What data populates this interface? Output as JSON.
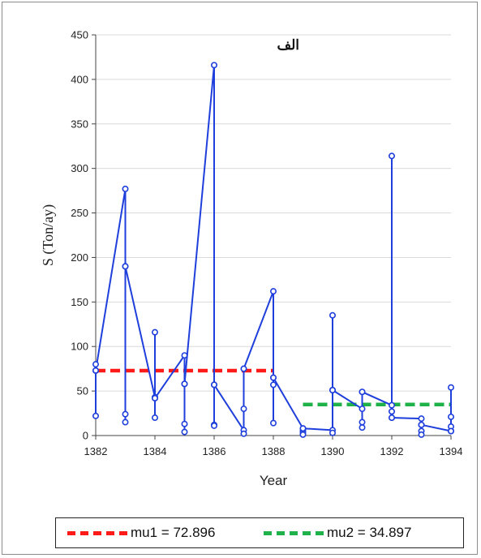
{
  "chart_data": {
    "type": "line",
    "title": "الف",
    "xlabel": "Year",
    "ylabel": "S (Ton/ay)",
    "xlim": [
      1382,
      1394
    ],
    "ylim": [
      0,
      450
    ],
    "x_ticks": [
      "1382",
      "1384",
      "1386",
      "1388",
      "1390",
      "1392",
      "1394"
    ],
    "y_ticks": [
      "0",
      "50",
      "100",
      "150",
      "200",
      "250",
      "300",
      "350",
      "400",
      "450"
    ],
    "grid": "horizontal",
    "legend_position": "bottom",
    "series": [
      {
        "name": "",
        "color": "#1f3fdc",
        "points": [
          [
            1382,
            80
          ],
          [
            1382,
            73
          ],
          [
            1382,
            22
          ],
          [
            1382,
            73
          ],
          [
            1383,
            277
          ],
          [
            1383,
            190
          ],
          [
            1383,
            24
          ],
          [
            1383,
            15
          ],
          [
            1383,
            190
          ],
          [
            1384,
            43
          ],
          [
            1384,
            116
          ],
          [
            1384,
            42
          ],
          [
            1384,
            20
          ],
          [
            1384,
            42
          ],
          [
            1385,
            90
          ],
          [
            1385,
            58
          ],
          [
            1385,
            13
          ],
          [
            1385,
            4
          ],
          [
            1385,
            58
          ],
          [
            1386,
            416
          ],
          [
            1386,
            57
          ],
          [
            1386,
            12
          ],
          [
            1386,
            11
          ],
          [
            1386,
            57
          ],
          [
            1387,
            6
          ],
          [
            1387,
            75
          ],
          [
            1387,
            30
          ],
          [
            1387,
            2
          ],
          [
            1387,
            75
          ],
          [
            1388,
            162
          ],
          [
            1388,
            65
          ],
          [
            1388,
            57
          ],
          [
            1388,
            14
          ],
          [
            1388,
            65
          ],
          [
            1389,
            8
          ],
          [
            1389,
            5
          ],
          [
            1389,
            3
          ],
          [
            1389,
            1
          ],
          [
            1389,
            8
          ],
          [
            1390,
            6
          ],
          [
            1390,
            135
          ],
          [
            1390,
            51
          ],
          [
            1390,
            3
          ],
          [
            1390,
            51
          ],
          [
            1391,
            30
          ],
          [
            1391,
            49
          ],
          [
            1391,
            15
          ],
          [
            1391,
            9
          ],
          [
            1391,
            49
          ],
          [
            1392,
            34
          ],
          [
            1392,
            314
          ],
          [
            1392,
            27
          ],
          [
            1392,
            20
          ],
          [
            1392,
            20
          ],
          [
            1393,
            19
          ],
          [
            1393,
            12
          ],
          [
            1393,
            5
          ],
          [
            1393,
            1
          ],
          [
            1393,
            12
          ],
          [
            1394,
            5
          ],
          [
            1394,
            54
          ],
          [
            1394,
            21
          ],
          [
            1394,
            10
          ],
          [
            1394,
            5
          ]
        ]
      }
    ],
    "reference_lines": [
      {
        "name": "mu1 = 72.896",
        "value": 72.896,
        "x_range": [
          1382,
          1388
        ],
        "color": "#ff1a1a",
        "style": "dashed"
      },
      {
        "name": "mu2 = 34.897",
        "value": 34.897,
        "x_range": [
          1389,
          1394
        ],
        "color": "#1fb24a",
        "style": "dashed"
      }
    ]
  }
}
